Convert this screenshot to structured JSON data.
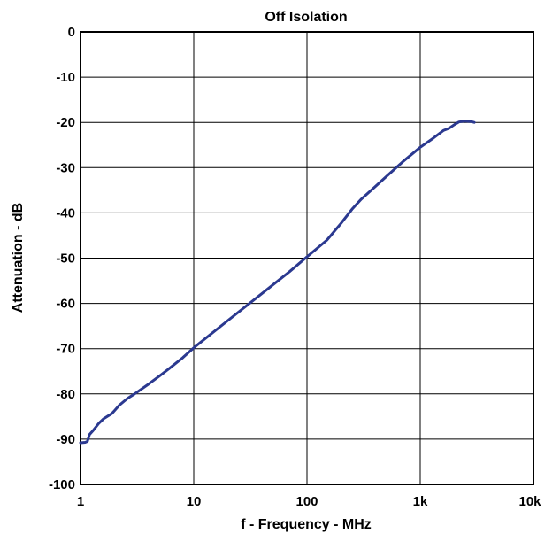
{
  "chart_data": {
    "type": "line",
    "title": "Off Isolation",
    "xlabel": "f - Frequency - MHz",
    "ylabel": "Attenuation - dB",
    "x_scale": "log",
    "xlim": [
      1,
      10000
    ],
    "ylim": [
      -100,
      0
    ],
    "x_ticks": [
      1,
      10,
      100,
      1000,
      10000
    ],
    "x_tick_labels": [
      "1",
      "10",
      "100",
      "1k",
      "10k"
    ],
    "y_ticks": [
      0,
      -10,
      -20,
      -30,
      -40,
      -50,
      -60,
      -70,
      -80,
      -90,
      -100
    ],
    "y_tick_labels": [
      "0",
      "-10",
      "-20",
      "-30",
      "-40",
      "-50",
      "-60",
      "-70",
      "-80",
      "-90",
      "-100"
    ],
    "grid": true,
    "line_color": "#2b3990",
    "series": [
      {
        "x": [
          1,
          1.1,
          1.15,
          1.2,
          1.3,
          1.45,
          1.6,
          1.9,
          2.2,
          2.6,
          3.0,
          4.0,
          5.0,
          6.0,
          8.0,
          10,
          20,
          40,
          70,
          100,
          150,
          200,
          250,
          300,
          400,
          500,
          700,
          1000,
          1300,
          1600,
          1800,
          2000,
          2200,
          2500,
          2800,
          3000
        ],
        "y": [
          -90.8,
          -90.7,
          -90.5,
          -89.0,
          -88.0,
          -86.5,
          -85.5,
          -84.3,
          -82.5,
          -81.0,
          -80.0,
          -77.8,
          -76.0,
          -74.5,
          -72.0,
          -69.8,
          -63.8,
          -57.8,
          -53.0,
          -49.7,
          -46.0,
          -42.3,
          -39.2,
          -37.0,
          -34.2,
          -32.0,
          -28.7,
          -25.5,
          -23.5,
          -21.8,
          -21.3,
          -20.5,
          -19.9,
          -19.7,
          -19.8,
          -20.0
        ]
      }
    ]
  }
}
